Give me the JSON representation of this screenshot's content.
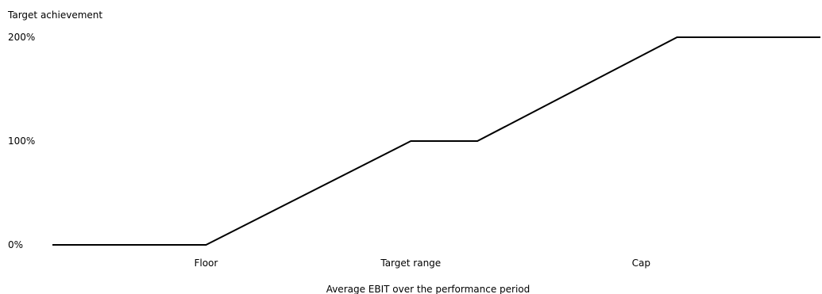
{
  "chart_data": {
    "type": "line",
    "title": "",
    "ylabel": "Target achievement",
    "xlabel": "Average EBIT over the performance period",
    "y_ticks": [
      {
        "value": 0,
        "label": "0%"
      },
      {
        "value": 100,
        "label": "100%"
      },
      {
        "value": 200,
        "label": "200%"
      }
    ],
    "x_ticks": [
      {
        "value": 3,
        "label": "Floor"
      },
      {
        "value": 7,
        "label": "Target range"
      },
      {
        "value": 11.5,
        "label": "Cap"
      }
    ],
    "ylim": [
      0,
      200
    ],
    "xlim": [
      0,
      15
    ],
    "grid": false,
    "series": [
      {
        "color": "#000000",
        "points": [
          {
            "x": 0,
            "y": 0
          },
          {
            "x": 3,
            "y": 0
          },
          {
            "x": 7,
            "y": 100
          },
          {
            "x": 8.3,
            "y": 100
          },
          {
            "x": 12.2,
            "y": 200
          },
          {
            "x": 15,
            "y": 200
          }
        ]
      }
    ]
  }
}
